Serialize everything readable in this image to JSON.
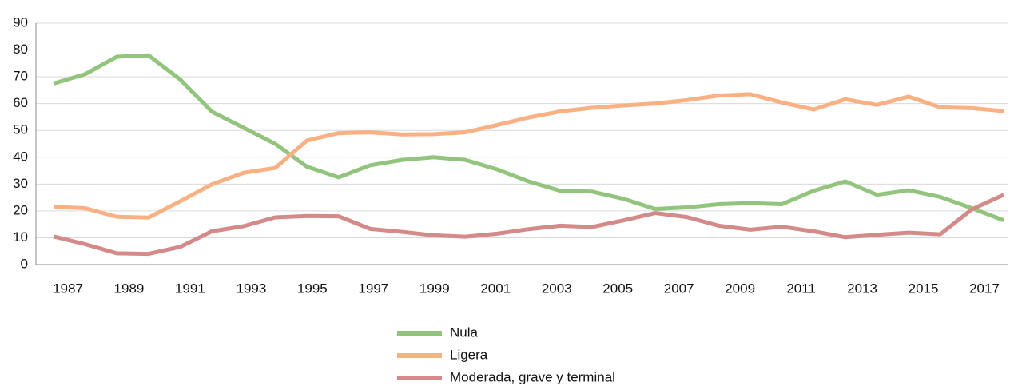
{
  "chart_data": {
    "type": "line",
    "categories": [
      "1987",
      null,
      "1989",
      null,
      "1991",
      null,
      "1993",
      null,
      "1995",
      null,
      "1997",
      null,
      "1999",
      null,
      "2001",
      null,
      "2003",
      null,
      "2005",
      null,
      "2007",
      null,
      "2009",
      null,
      "2011",
      null,
      "2013",
      null,
      "2015",
      null,
      "2017"
    ],
    "series": [
      {
        "name": "Nula",
        "color": "#93c47d",
        "values": [
          67.5,
          71,
          77.5,
          78,
          69,
          57,
          51,
          45,
          36.5,
          32.5,
          37,
          39,
          40,
          39,
          35.5,
          31,
          27.5,
          27.2,
          24.5,
          20.7,
          21.3,
          22.5,
          22.9,
          22.5,
          27.5,
          31,
          26,
          27.7,
          25.2,
          21,
          16.5
        ]
      },
      {
        "name": "Ligera",
        "color": "#f9b183",
        "values": [
          21.5,
          21,
          17.8,
          17.5,
          23.6,
          29.9,
          34.2,
          36,
          46.2,
          49,
          49.3,
          48.5,
          48.6,
          49.3,
          52,
          54.8,
          57.1,
          58.4,
          59.3,
          60,
          61.3,
          63,
          63.5,
          60.4,
          57.8,
          61.6,
          59.5,
          62.6,
          58.6,
          58.3,
          57.2
        ]
      },
      {
        "name": "Moderada, grave y terminal",
        "color": "#d48a88",
        "values": [
          10.5,
          7.6,
          4.2,
          4,
          6.6,
          12.4,
          14.3,
          17.6,
          18.1,
          18,
          13.3,
          12.2,
          10.9,
          10.4,
          11.5,
          13.2,
          14.5,
          14,
          16.5,
          19.2,
          17.7,
          14.5,
          13,
          14.1,
          12.4,
          10.2,
          11.1,
          11.9,
          11.3,
          20.6,
          26
        ]
      }
    ],
    "ylim": [
      0,
      90
    ],
    "yticks": [
      0,
      10,
      20,
      30,
      40,
      50,
      60,
      70,
      80,
      90
    ],
    "grid": true,
    "legend": "bottom"
  }
}
